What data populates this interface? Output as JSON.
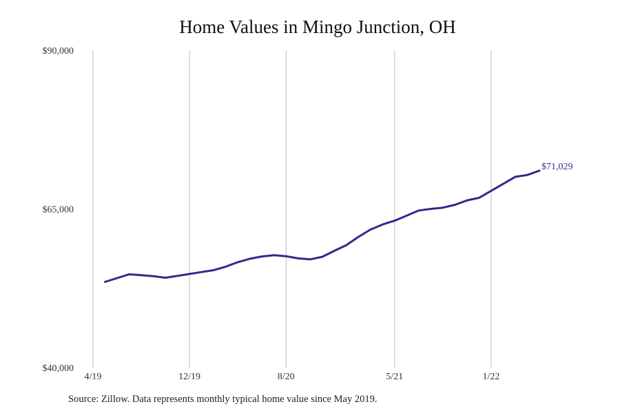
{
  "chart_data": {
    "type": "line",
    "title": "Home Values in Mingo Junction, OH",
    "xlabel": "",
    "ylabel": "",
    "ylim": [
      40000,
      90000
    ],
    "y_ticks": [
      {
        "value": 40000,
        "label": "$40,000"
      },
      {
        "value": 65000,
        "label": "$65,000"
      },
      {
        "value": 90000,
        "label": "$90,000"
      }
    ],
    "x_ticks": [
      "4/19",
      "12/19",
      "8/20",
      "5/21",
      "1/22"
    ],
    "x": [
      "5/19",
      "6/19",
      "7/19",
      "8/19",
      "9/19",
      "10/19",
      "11/19",
      "12/19",
      "1/20",
      "2/20",
      "3/20",
      "4/20",
      "5/20",
      "6/20",
      "7/20",
      "8/20",
      "9/20",
      "10/20",
      "11/20",
      "12/20",
      "1/21",
      "2/21",
      "3/21",
      "4/21",
      "5/21",
      "6/21",
      "7/21",
      "8/21",
      "9/21",
      "10/21",
      "11/21",
      "12/21",
      "1/22",
      "2/22",
      "3/22",
      "4/22",
      "5/22"
    ],
    "series": [
      {
        "color": "#2e2a8c",
        "values": [
          53500,
          54100,
          54700,
          54550,
          54400,
          54150,
          54450,
          54750,
          55050,
          55350,
          55900,
          56600,
          57150,
          57500,
          57700,
          57550,
          57200,
          57050,
          57450,
          58400,
          59300,
          60600,
          61750,
          62550,
          63150,
          63950,
          64750,
          65000,
          65200,
          65650,
          66350,
          66750,
          67850,
          68950,
          70050,
          70350,
          71029
        ]
      }
    ],
    "end_label": "$71,029",
    "grid": "vertical",
    "source": "Source: Zillow. Data represents monthly typical home value since May 2019."
  }
}
